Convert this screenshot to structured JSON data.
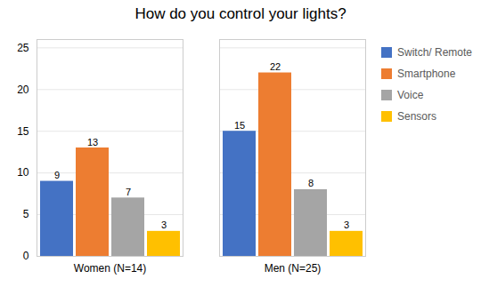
{
  "chart_data": {
    "type": "bar",
    "title": "How do you control your lights?",
    "categories": [
      "Women (N=14)",
      "Men (N=25)"
    ],
    "series": [
      {
        "name": "Switch/ Remote",
        "color": "#4472C4",
        "values": [
          9,
          15
        ]
      },
      {
        "name": "Smartphone",
        "color": "#ED7D31",
        "values": [
          13,
          22
        ]
      },
      {
        "name": "Voice",
        "color": "#A5A5A5",
        "values": [
          7,
          8
        ]
      },
      {
        "name": "Sensors",
        "color": "#FFC000",
        "values": [
          3,
          3
        ]
      }
    ],
    "ylim": [
      0,
      26
    ],
    "yticks": [
      0,
      5,
      10,
      15,
      20,
      25
    ],
    "grid": true,
    "legend": "right",
    "data_labels": true
  }
}
